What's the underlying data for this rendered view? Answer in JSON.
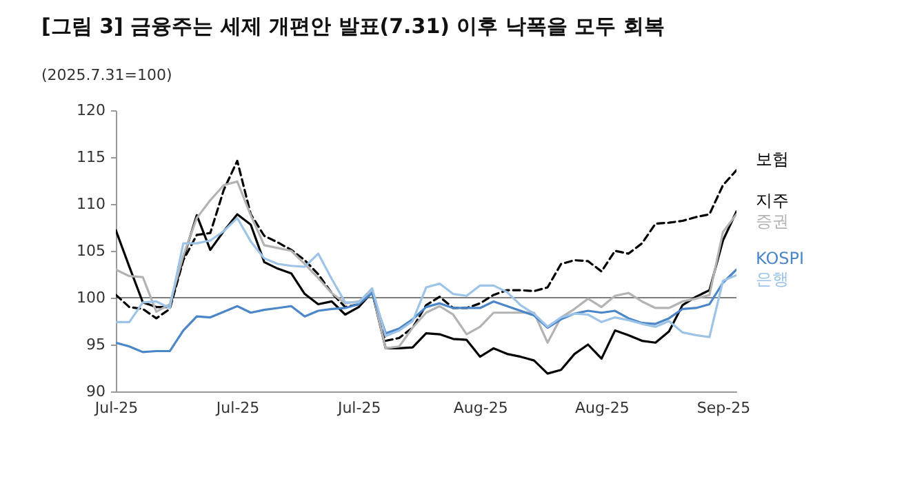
{
  "chart_data": {
    "type": "line",
    "title": "[그림 3] 금융주는 세제 개편안 발표(7.31) 이후 낙폭을 모두 회복",
    "subtitle": "(2025.7.31=100)",
    "categories": [
      "Jul-25",
      null,
      null,
      null,
      null,
      null,
      null,
      null,
      null,
      "Jul-25",
      null,
      null,
      null,
      null,
      null,
      null,
      null,
      null,
      "Jul-25",
      null,
      null,
      null,
      null,
      null,
      null,
      null,
      null,
      "Aug-25",
      null,
      null,
      null,
      null,
      null,
      null,
      null,
      null,
      "Aug-25",
      null,
      null,
      null,
      null,
      null,
      null,
      null,
      null,
      "Sep-25",
      null
    ],
    "ylim": [
      90,
      120
    ],
    "yticks": [
      90,
      95,
      100,
      105,
      110,
      115,
      120
    ],
    "grid": false,
    "ref_lines": [
      {
        "axis": "y",
        "value": 100,
        "color": "#555555"
      }
    ],
    "series": [
      {
        "name": "보험",
        "color": "#000000",
        "line_style": "dashed",
        "values": [
          100.3,
          99.0,
          98.8,
          97.8,
          98.8,
          104.0,
          106.7,
          106.9,
          111.5,
          114.6,
          108.9,
          106.6,
          105.9,
          105.1,
          104.0,
          102.5,
          100.5,
          99.0,
          99.3,
          100.6,
          95.4,
          95.7,
          96.8,
          99.2,
          100.1,
          98.9,
          98.9,
          99.4,
          100.3,
          100.8,
          100.8,
          100.7,
          101.1,
          103.6,
          104.0,
          103.9,
          102.8,
          105.0,
          104.7,
          105.8,
          107.9,
          108.0,
          108.2,
          108.6,
          108.9,
          112.0,
          113.6
        ]
      },
      {
        "name": "지주",
        "color": "#000000",
        "values": [
          107.2,
          103.3,
          99.5,
          99.0,
          99.0,
          104.2,
          108.8,
          105.1,
          107.1,
          108.9,
          107.8,
          103.8,
          103.1,
          102.6,
          100.4,
          99.3,
          99.6,
          98.2,
          99.0,
          100.6,
          94.6,
          94.6,
          94.7,
          96.2,
          96.1,
          95.6,
          95.5,
          93.7,
          94.6,
          94.0,
          93.7,
          93.3,
          91.9,
          92.3,
          94.0,
          95.0,
          93.5,
          96.5,
          96.0,
          95.4,
          95.2,
          96.4,
          99.2,
          100.1,
          100.8,
          106.1,
          109.2
        ]
      },
      {
        "name": "증권",
        "color": "#b3b3b3",
        "values": [
          103.0,
          102.3,
          102.2,
          98.5,
          99.3,
          104.5,
          108.5,
          110.4,
          112.0,
          112.4,
          108.8,
          105.6,
          105.3,
          105.0,
          103.6,
          102.1,
          100.5,
          99.4,
          99.6,
          100.7,
          94.6,
          94.8,
          96.8,
          98.4,
          99.1,
          98.2,
          96.1,
          96.9,
          98.4,
          98.4,
          98.4,
          98.4,
          95.2,
          97.9,
          98.8,
          99.9,
          99.0,
          100.2,
          100.5,
          99.6,
          98.9,
          98.9,
          99.6,
          99.9,
          100.3,
          107.0,
          108.9
        ]
      },
      {
        "name": "KOSPI",
        "color": "#4a86c8",
        "values": [
          95.2,
          94.8,
          94.2,
          94.3,
          94.3,
          96.5,
          98.0,
          97.9,
          98.5,
          99.1,
          98.4,
          98.7,
          98.9,
          99.1,
          98.0,
          98.6,
          98.8,
          98.9,
          99.3,
          100.5,
          96.2,
          96.7,
          97.7,
          99.0,
          99.4,
          98.9,
          98.9,
          98.9,
          99.6,
          99.1,
          98.6,
          98.1,
          96.8,
          97.7,
          98.3,
          98.6,
          98.4,
          98.6,
          97.8,
          97.3,
          97.2,
          97.8,
          98.8,
          98.9,
          99.3,
          101.6,
          103.0
        ]
      },
      {
        "name": "은행",
        "color": "#9dc3e6",
        "values": [
          97.4,
          97.4,
          99.5,
          99.6,
          98.9,
          105.8,
          105.8,
          106.1,
          107.1,
          108.5,
          106.0,
          104.2,
          103.6,
          103.4,
          103.3,
          104.7,
          102.0,
          99.5,
          99.5,
          101.0,
          95.9,
          96.5,
          97.5,
          101.1,
          101.5,
          100.4,
          100.2,
          101.3,
          101.3,
          100.6,
          99.2,
          98.3,
          96.9,
          97.9,
          98.3,
          98.2,
          97.4,
          97.9,
          97.6,
          97.2,
          96.9,
          97.5,
          96.3,
          96.0,
          95.8,
          101.8,
          102.4
        ]
      }
    ]
  }
}
